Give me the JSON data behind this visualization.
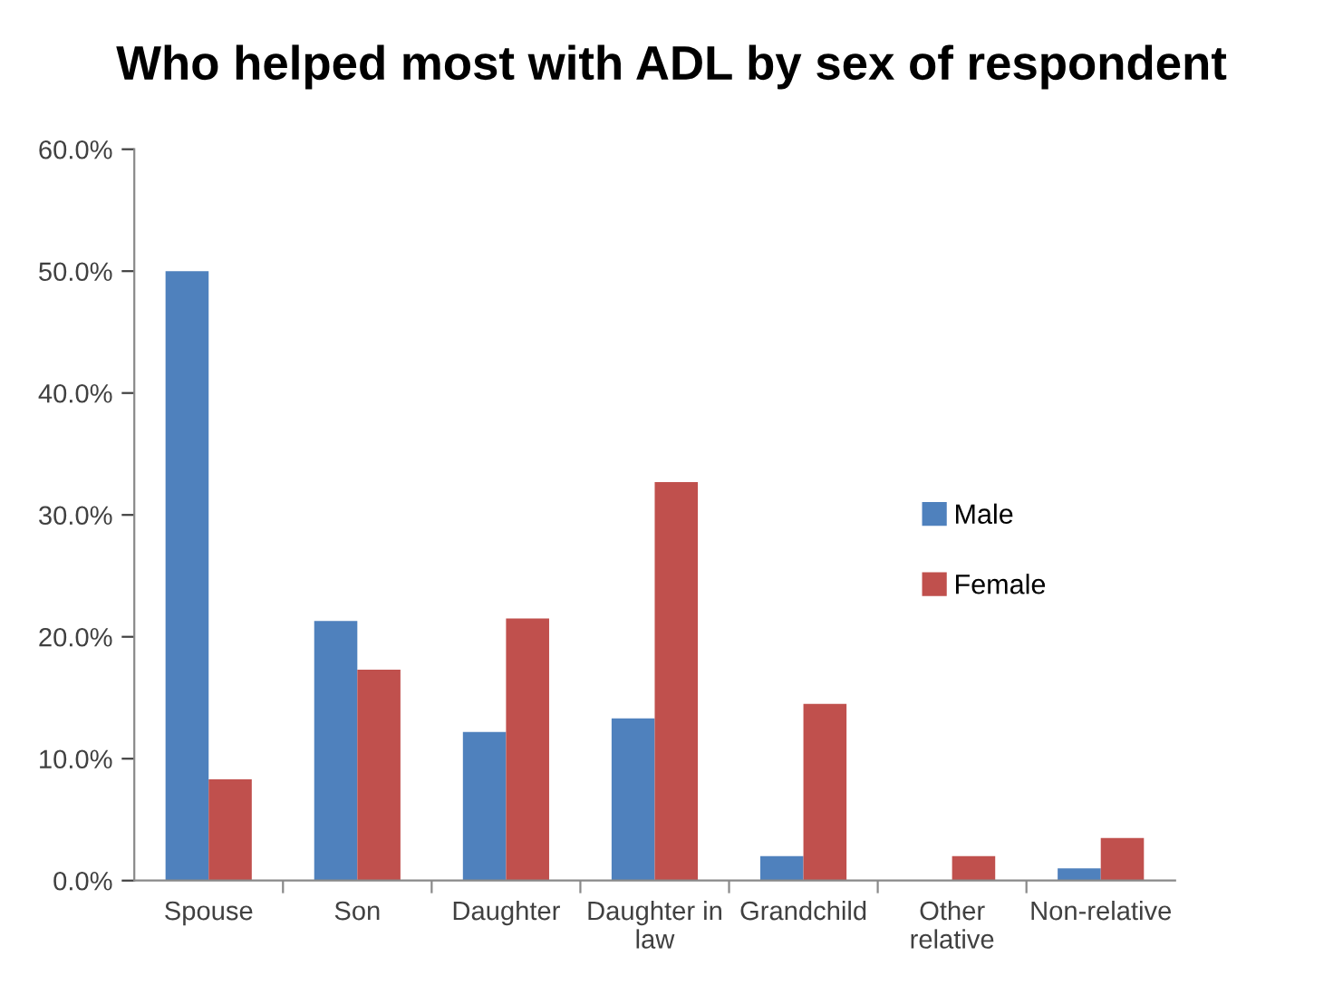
{
  "chart_data": {
    "type": "bar",
    "title": "Who helped most with ADL by sex of respondent",
    "categories": [
      "Spouse",
      "Son",
      "Daughter",
      "Daughter in\nlaw",
      "Grandchild",
      "Other\nrelative",
      "Non-relative"
    ],
    "series": [
      {
        "name": "Male",
        "color": "#4f81bd",
        "values": [
          50.0,
          21.3,
          12.2,
          13.3,
          2.0,
          0,
          1.0
        ]
      },
      {
        "name": "Female",
        "color": "#c0504d",
        "values": [
          8.3,
          17.3,
          21.5,
          32.7,
          14.5,
          2.0,
          3.5
        ]
      }
    ],
    "ylim": [
      0,
      60
    ],
    "yticks": [
      {
        "value": 0,
        "label": "0.0%"
      },
      {
        "value": 10,
        "label": "10.0%"
      },
      {
        "value": 20,
        "label": "20.0%"
      },
      {
        "value": 30,
        "label": "30.0%"
      },
      {
        "value": 40,
        "label": "40.0%"
      },
      {
        "value": 50,
        "label": "50.0%"
      },
      {
        "value": 60,
        "label": "60.0%"
      }
    ],
    "grid": false,
    "legend": "right"
  }
}
